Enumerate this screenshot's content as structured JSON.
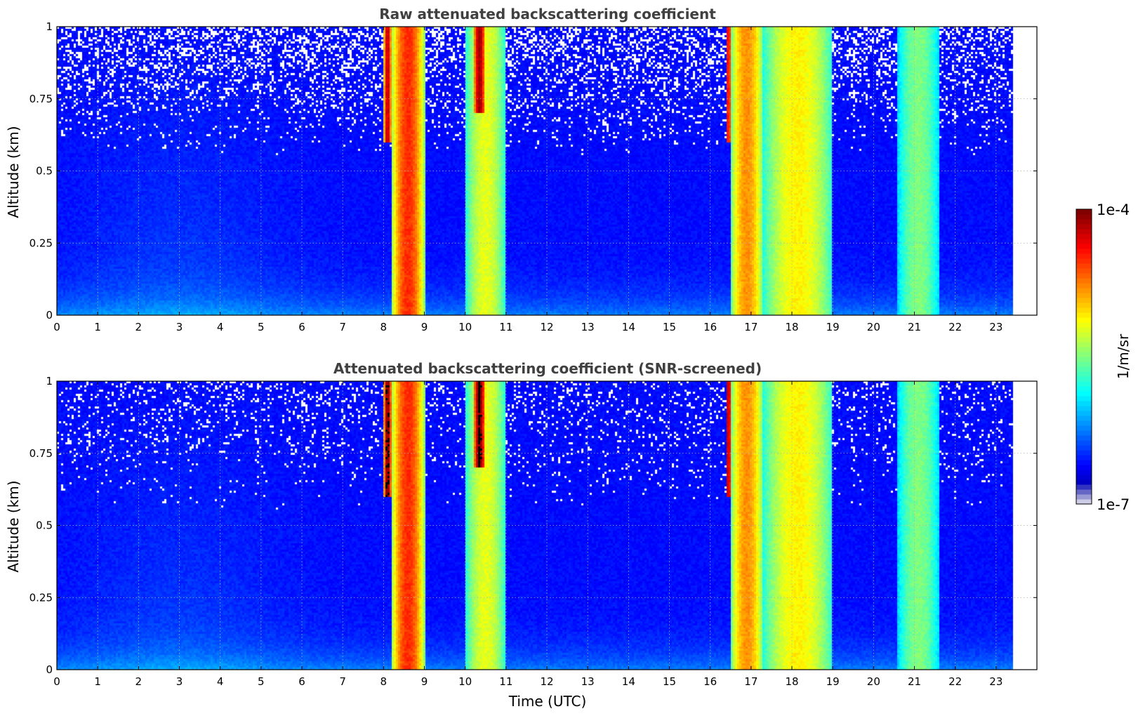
{
  "chart_data": [
    {
      "type": "heatmap",
      "title": "Raw attenuated backscattering coefficient",
      "ylabel": "Altitude (km)",
      "xlabel": "",
      "xlim": [
        0,
        24
      ],
      "ylim": [
        0,
        1
      ],
      "x_ticks": [
        "0",
        "1",
        "2",
        "3",
        "4",
        "5",
        "6",
        "7",
        "8",
        "9",
        "10",
        "11",
        "12",
        "13",
        "14",
        "15",
        "16",
        "17",
        "18",
        "19",
        "20",
        "21",
        "22",
        "23"
      ],
      "y_ticks": [
        "0",
        "0.25",
        "0.5",
        "0.75",
        "1"
      ],
      "y_tick_values": [
        0,
        0.25,
        0.5,
        0.75,
        1
      ],
      "data_end_time": 23.4,
      "grid": true,
      "screened": false,
      "cloud_events": [
        {
          "start": 8.2,
          "end": 9.0,
          "base_altitude": 0.0,
          "peak_log10": -4.5
        },
        {
          "start": 10.0,
          "end": 11.0,
          "base_altitude": 0.0,
          "peak_log10": -5.2
        },
        {
          "start": 16.5,
          "end": 17.3,
          "base_altitude": 0.0,
          "peak_log10": -4.8
        },
        {
          "start": 17.3,
          "end": 19.0,
          "base_altitude": 0.0,
          "peak_log10": -5.1
        },
        {
          "start": 20.6,
          "end": 21.6,
          "base_altitude": 0.0,
          "peak_log10": -5.5
        },
        {
          "start": 8.0,
          "end": 8.2,
          "base_altitude": 0.6,
          "peak_log10": -4.2
        },
        {
          "start": 10.2,
          "end": 10.5,
          "base_altitude": 0.7,
          "peak_log10": -4.1
        },
        {
          "start": 16.4,
          "end": 16.5,
          "base_altitude": 0.6,
          "peak_log10": -4.2
        }
      ],
      "background_log10": -6.6
    },
    {
      "type": "heatmap",
      "title": "Attenuated backscattering coefficient (SNR-screened)",
      "ylabel": "Altitude (km)",
      "xlabel": "Time (UTC)",
      "xlim": [
        0,
        24
      ],
      "ylim": [
        0,
        1
      ],
      "x_ticks": [
        "0",
        "1",
        "2",
        "3",
        "4",
        "5",
        "6",
        "7",
        "8",
        "9",
        "10",
        "11",
        "12",
        "13",
        "14",
        "15",
        "16",
        "17",
        "18",
        "19",
        "20",
        "21",
        "22",
        "23"
      ],
      "y_ticks": [
        "0",
        "0.25",
        "0.5",
        "0.75",
        "1"
      ],
      "y_tick_values": [
        0,
        0.25,
        0.5,
        0.75,
        1
      ],
      "data_end_time": 23.4,
      "grid": true,
      "screened": true,
      "cloud_events": [
        {
          "start": 8.2,
          "end": 9.0,
          "base_altitude": 0.0,
          "peak_log10": -4.5
        },
        {
          "start": 10.0,
          "end": 11.0,
          "base_altitude": 0.0,
          "peak_log10": -5.2
        },
        {
          "start": 16.5,
          "end": 17.3,
          "base_altitude": 0.0,
          "peak_log10": -4.8
        },
        {
          "start": 17.3,
          "end": 19.0,
          "base_altitude": 0.0,
          "peak_log10": -5.1
        },
        {
          "start": 20.6,
          "end": 21.6,
          "base_altitude": 0.0,
          "peak_log10": -5.5
        },
        {
          "start": 8.0,
          "end": 8.2,
          "base_altitude": 0.6,
          "peak_log10": -4.0
        },
        {
          "start": 10.2,
          "end": 10.5,
          "base_altitude": 0.7,
          "peak_log10": -4.0
        },
        {
          "start": 16.4,
          "end": 16.5,
          "base_altitude": 0.6,
          "peak_log10": -4.0
        }
      ],
      "background_log10": -6.6
    }
  ],
  "colorbar": {
    "label": "1/m/sr",
    "max_label": "1e-4",
    "min_label": "1e-7",
    "scale": "log",
    "range_log10": [
      -7,
      -4
    ],
    "colormap": "jet"
  }
}
